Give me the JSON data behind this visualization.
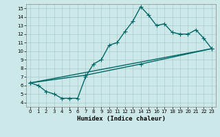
{
  "title": "",
  "xlabel": "Humidex (Indice chaleur)",
  "bg_color": "#cce8e8",
  "grid_color": "#aacccc",
  "line_color": "#006666",
  "xlim": [
    -0.5,
    23.5
  ],
  "ylim": [
    3.5,
    15.5
  ],
  "xticks": [
    0,
    1,
    2,
    3,
    4,
    5,
    6,
    7,
    8,
    9,
    10,
    11,
    12,
    13,
    14,
    15,
    16,
    17,
    18,
    19,
    20,
    21,
    22,
    23
  ],
  "yticks": [
    4,
    5,
    6,
    7,
    8,
    9,
    10,
    11,
    12,
    13,
    14,
    15
  ],
  "series1_x": [
    0,
    1,
    2,
    3,
    4,
    5,
    6,
    7,
    8,
    9,
    10,
    11,
    12,
    13,
    14,
    15,
    16,
    17,
    18,
    19,
    20,
    21,
    22,
    23
  ],
  "series1_y": [
    6.3,
    6.0,
    5.3,
    5.0,
    4.5,
    4.5,
    4.5,
    7.0,
    8.5,
    9.0,
    10.7,
    11.0,
    12.3,
    13.5,
    15.2,
    14.2,
    13.0,
    13.2,
    12.2,
    12.0,
    12.0,
    12.5,
    11.5,
    10.3
  ],
  "series2_x": [
    0,
    23
  ],
  "series2_y": [
    6.3,
    10.3
  ],
  "series3_x": [
    0,
    7,
    14,
    23
  ],
  "series3_y": [
    6.3,
    7.2,
    8.5,
    10.3
  ],
  "marker": "+",
  "markersize": 4,
  "linewidth": 1.0
}
